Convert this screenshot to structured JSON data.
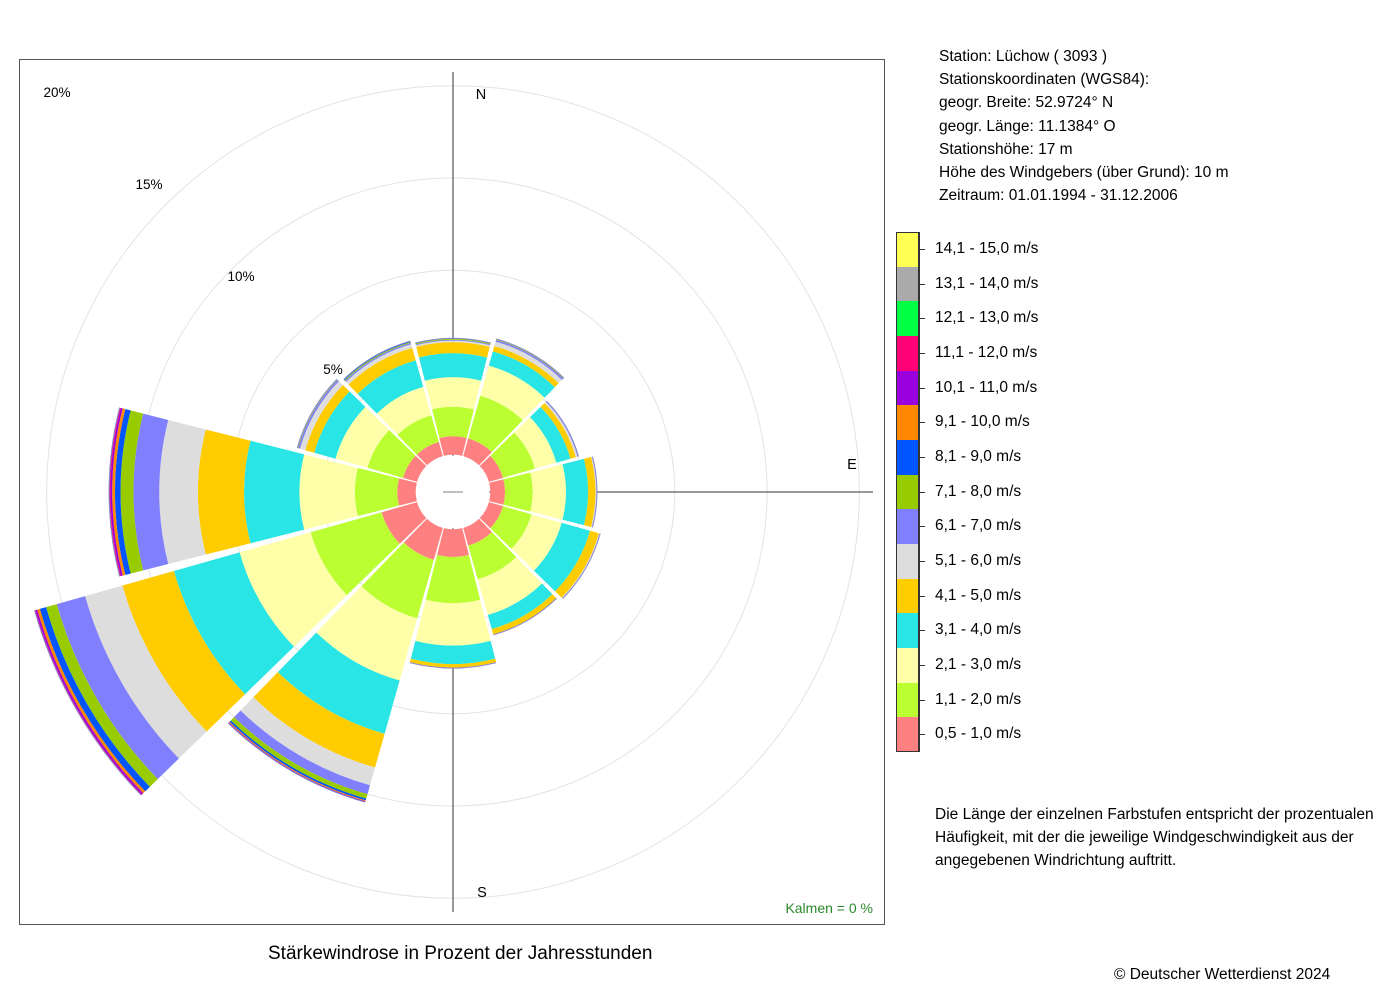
{
  "station": {
    "name_line": "Station:  Lüchow  ( 3093 )",
    "coords_heading": "Stationskoordinaten (WGS84):",
    "lat_line": "geogr. Breite: 52.9724° N",
    "lon_line": "geogr. Länge: 11.1384° O",
    "height_line": "Stationshöhe: 17 m",
    "anemometer_line": "Höhe des Windgebers (über Grund): 10 m",
    "period_line": "Zeitraum: 01.01.1994 - 31.12.2006"
  },
  "legend": {
    "items": [
      {
        "label": "14,1 - 15,0 m/s",
        "color": "#ffff55"
      },
      {
        "label": "13,1 - 14,0 m/s",
        "color": "#aaaaaa"
      },
      {
        "label": "12,1 - 13,0 m/s",
        "color": "#00ff44"
      },
      {
        "label": "11,1 - 12,0 m/s",
        "color": "#ff0077"
      },
      {
        "label": "10,1 - 11,0 m/s",
        "color": "#9900dd"
      },
      {
        "label": "9,1 - 10,0 m/s",
        "color": "#ff8800"
      },
      {
        "label": "8,1 - 9,0 m/s",
        "color": "#0055ff"
      },
      {
        "label": "7,1 - 8,0 m/s",
        "color": "#99cc00"
      },
      {
        "label": "6,1 - 7,0 m/s",
        "color": "#8080ff"
      },
      {
        "label": "5,1 - 6,0 m/s",
        "color": "#dddddd"
      },
      {
        "label": "4,1 - 5,0 m/s",
        "color": "#ffcc00"
      },
      {
        "label": "3,1 - 4,0 m/s",
        "color": "#2ae5e5"
      },
      {
        "label": "2,1 - 3,0 m/s",
        "color": "#ffffaa"
      },
      {
        "label": "1,1 - 2,0 m/s",
        "color": "#bbff33"
      },
      {
        "label": "0,5 - 1,0 m/s",
        "color": "#ff8080"
      }
    ]
  },
  "note": {
    "line1": "Die Länge der einzelnen Farbstufen entspricht der prozentualen",
    "line2": "Häufigkeit, mit der die jeweilige Windgeschwindigkeit aus der",
    "line3": "angegebenen Windrichtung auftritt."
  },
  "caption": "Stärkewindrose in Prozent der Jahresstunden",
  "copyright": "© Deutscher Wetterdienst  2024",
  "chart_data": {
    "type": "windrose",
    "directions": [
      "N",
      "30°",
      "60°",
      "E",
      "120°",
      "150°",
      "S",
      "210°",
      "240°",
      "W",
      "300°",
      "330°"
    ],
    "direction_angles_deg": [
      0,
      30,
      60,
      90,
      120,
      150,
      180,
      210,
      240,
      270,
      300,
      330
    ],
    "compass_labels": {
      "N": "N",
      "E": "E",
      "S": "S"
    },
    "calm_label": "Kalmen  =  0 %",
    "ring_labels": [
      "5%",
      "10%",
      "15%",
      "20%"
    ],
    "ring_values": [
      5,
      10,
      15,
      20
    ],
    "rmax": 21.4,
    "center_hole_radius_pct": 1.1,
    "classes": [
      "0,5 - 1,0 m/s",
      "1,1 - 2,0 m/s",
      "2,1 - 3,0 m/s",
      "3,1 - 4,0 m/s",
      "4,1 - 5,0 m/s",
      "5,1 - 6,0 m/s",
      "6,1 - 7,0 m/s",
      "7,1 - 8,0 m/s",
      "8,1 - 9,0 m/s",
      "9,1 - 10,0 m/s",
      "10,1 - 11,0 m/s",
      "11,1 - 12,0 m/s",
      "12,1 - 13,0 m/s",
      "13,1 - 14,0 m/s",
      "14,1 - 15,0 m/s"
    ],
    "colors": [
      "#ff8080",
      "#bbff33",
      "#ffffaa",
      "#2ae5e5",
      "#ffcc00",
      "#dddddd",
      "#8080ff",
      "#99cc00",
      "#0055ff",
      "#ff8800",
      "#9900dd",
      "#ff0077",
      "#00ff44",
      "#aaaaaa",
      "#ffff55"
    ],
    "series": [
      {
        "direction": "N",
        "values": [
          1.0,
          1.6,
          1.6,
          1.3,
          0.6,
          0.08,
          0.05,
          0.05,
          0.03,
          0,
          0,
          0,
          0,
          0,
          0
        ]
      },
      {
        "direction": "30°",
        "values": [
          1.0,
          2.4,
          1.7,
          0.8,
          0.3,
          0.25,
          0.1,
          0.05,
          0,
          0,
          0,
          0,
          0,
          0,
          0
        ]
      },
      {
        "direction": "60°",
        "values": [
          0.8,
          1.8,
          1.2,
          0.8,
          0.3,
          0.1,
          0.05,
          0,
          0,
          0,
          0,
          0,
          0,
          0,
          0
        ]
      },
      {
        "direction": "E",
        "values": [
          0.8,
          1.5,
          1.8,
          1.2,
          0.4,
          0.05,
          0.03,
          0,
          0,
          0,
          0,
          0,
          0,
          0,
          0
        ]
      },
      {
        "direction": "120°",
        "values": [
          0.8,
          1.6,
          1.7,
          1.6,
          0.5,
          0.05,
          0.02,
          0,
          0,
          0,
          0,
          0,
          0,
          0,
          0
        ]
      },
      {
        "direction": "150°",
        "values": [
          1.0,
          1.9,
          2.0,
          0.8,
          0.3,
          0.02,
          0,
          0,
          0,
          0,
          0,
          0,
          0,
          0,
          0
        ]
      },
      {
        "direction": "S",
        "values": [
          1.5,
          2.5,
          2.3,
          1.0,
          0.2,
          0.02,
          0,
          0,
          0,
          0,
          0,
          0,
          0,
          0,
          0
        ]
      },
      {
        "direction": "210°",
        "values": [
          1.8,
          3.3,
          3.5,
          3.0,
          1.9,
          1.0,
          0.5,
          0.25,
          0.1,
          0.05,
          0.05,
          0,
          0,
          0,
          0
        ]
      },
      {
        "direction": "240°",
        "values": [
          2.0,
          4.0,
          4.0,
          3.7,
          2.9,
          2.1,
          1.6,
          0.6,
          0.35,
          0.15,
          0.1,
          0.05,
          0,
          0,
          0
        ]
      },
      {
        "direction": "W",
        "values": [
          1.0,
          2.3,
          3.0,
          3.0,
          2.5,
          2.1,
          1.4,
          0.7,
          0.3,
          0.15,
          0.1,
          0.05,
          0.02,
          0,
          0
        ]
      },
      {
        "direction": "300°",
        "values": [
          0.8,
          2.0,
          1.8,
          1.2,
          0.5,
          0.3,
          0.1,
          0.05,
          0,
          0,
          0,
          0,
          0,
          0,
          0
        ]
      },
      {
        "direction": "330°",
        "values": [
          0.8,
          1.5,
          1.6,
          1.5,
          0.7,
          0.2,
          0.08,
          0.05,
          0.05,
          0,
          0,
          0,
          0,
          0,
          0
        ]
      }
    ]
  }
}
